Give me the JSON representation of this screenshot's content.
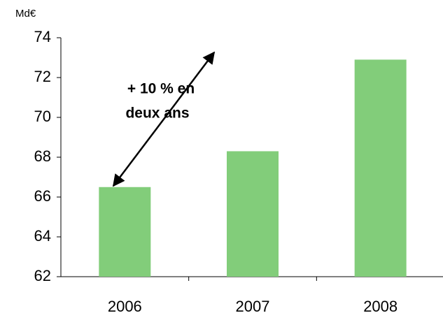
{
  "chart_data": {
    "type": "bar",
    "unit_label": "Md€",
    "annotation": [
      "+ 10 % en",
      "deux ans"
    ],
    "categories": [
      "2006",
      "2007",
      "2008"
    ],
    "values": [
      66.5,
      68.3,
      72.9
    ],
    "color": "#82cd7a",
    "ylim": [
      62,
      74
    ],
    "yticks": [
      62,
      64,
      66,
      68,
      70,
      72,
      74
    ],
    "grid": false
  }
}
